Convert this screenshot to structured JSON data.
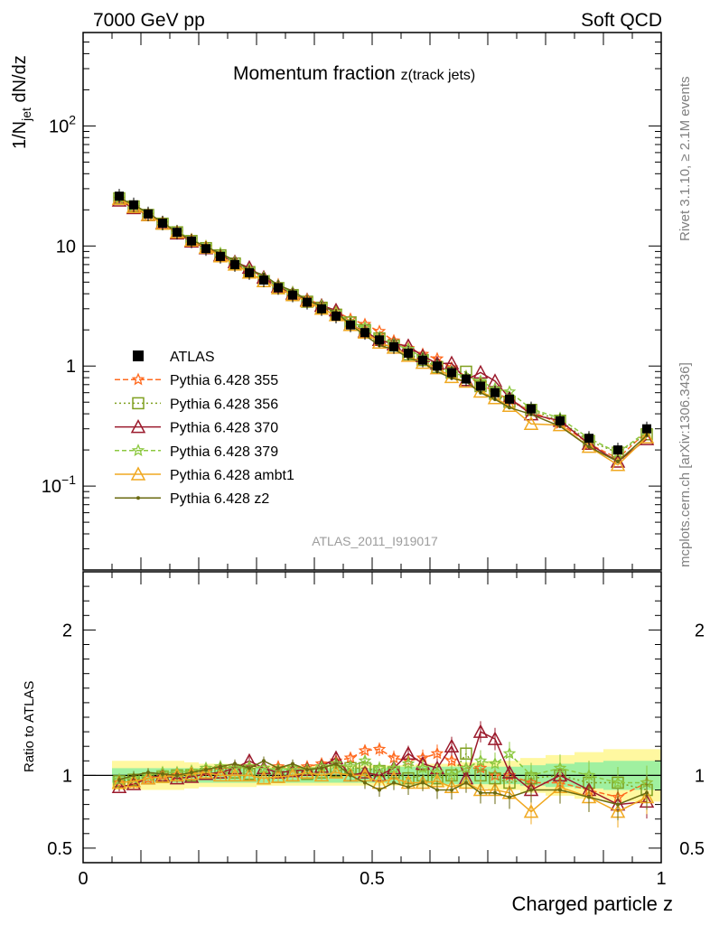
{
  "header": {
    "left": "7000 GeV pp",
    "right": "Soft QCD"
  },
  "side_labels": {
    "rivet": "Rivet 3.1.10, ≥ 2.1M events",
    "mcplots": "mcplots.cern.ch [arXiv:1306.3436]"
  },
  "chart_data": [
    {
      "type": "scatter",
      "title": "Momentum fraction",
      "title_sub": "z(track jets)",
      "ylabel_main": "1/N",
      "ylabel_sub": "jet",
      "ylabel_tail": " dN/dz",
      "xlabel": "Charged particle z",
      "xlim": [
        0,
        1
      ],
      "ylim": [
        0.02,
        600
      ],
      "yscale": "log",
      "ytick_labels": [
        {
          "v": 0.1,
          "base": "10",
          "exp": "−1"
        },
        {
          "v": 1,
          "text": "1"
        },
        {
          "v": 10,
          "text": "10"
        },
        {
          "v": 100,
          "base": "10",
          "exp": "2"
        }
      ],
      "xtick_labels": [
        {
          "v": 0,
          "text": "0"
        },
        {
          "v": 0.5,
          "text": "0.5"
        },
        {
          "v": 1,
          "text": "1"
        }
      ],
      "watermark": "ATLAS_2011_I919017",
      "x": [
        0.0625,
        0.0875,
        0.1125,
        0.1375,
        0.1625,
        0.1875,
        0.2125,
        0.2375,
        0.2625,
        0.2875,
        0.3125,
        0.3375,
        0.3625,
        0.3875,
        0.4125,
        0.4375,
        0.4625,
        0.4875,
        0.5125,
        0.5375,
        0.5625,
        0.5875,
        0.6125,
        0.6375,
        0.6625,
        0.6875,
        0.7125,
        0.7375,
        0.775,
        0.825,
        0.875,
        0.925,
        0.975
      ],
      "atlas": [
        26,
        22,
        18.5,
        15.5,
        13,
        11,
        9.5,
        8.2,
        7.0,
        6.0,
        5.2,
        4.5,
        3.9,
        3.4,
        3.0,
        2.6,
        2.2,
        1.9,
        1.65,
        1.45,
        1.28,
        1.12,
        1.0,
        0.88,
        0.78,
        0.68,
        0.6,
        0.53,
        0.44,
        0.35,
        0.25,
        0.2,
        0.3
      ],
      "series": [
        {
          "name": "Pythia 6.428 355",
          "color": "#ff6a1f",
          "dash": "6,3",
          "marker": "star",
          "ratio": [
            0.95,
            0.95,
            0.98,
            1.0,
            1.0,
            1.02,
            1.03,
            1.05,
            1.05,
            1.06,
            1.05,
            1.06,
            1.05,
            1.06,
            1.08,
            1.1,
            1.12,
            1.17,
            1.18,
            1.12,
            1.1,
            1.12,
            1.15,
            1.1,
            1.05,
            1.05,
            1.0,
            1.0,
            0.95,
            0.95,
            0.9,
            0.85,
            0.95
          ]
        },
        {
          "name": "Pythia 6.428 356",
          "color": "#80a020",
          "dash": "2,3",
          "marker": "square",
          "ratio": [
            0.96,
            0.97,
            0.98,
            0.99,
            1.0,
            1.0,
            1.01,
            1.02,
            1.02,
            1.01,
            0.98,
            0.99,
            1.0,
            1.01,
            1.02,
            1.03,
            1.05,
            1.05,
            1.03,
            1.02,
            0.98,
            1.0,
            0.98,
            1.0,
            1.15,
            1.0,
            0.98,
            0.95,
            0.98,
            1.0,
            0.95,
            0.95,
            0.9
          ]
        },
        {
          "name": "Pythia 6.428 370",
          "color": "#9b1a2c",
          "dash": "",
          "marker": "triangle",
          "ratio": [
            0.92,
            0.94,
            0.98,
            1.0,
            0.98,
            0.99,
            1.01,
            1.02,
            1.05,
            1.1,
            1.05,
            1.02,
            1.03,
            1.04,
            1.06,
            1.12,
            1.0,
            1.02,
            1.0,
            1.05,
            1.15,
            1.08,
            1.05,
            1.2,
            0.98,
            1.3,
            1.25,
            1.02,
            0.9,
            1.0,
            0.9,
            0.8,
            0.82
          ]
        },
        {
          "name": "Pythia 6.428 379",
          "color": "#8cc840",
          "dash": "5,3",
          "marker": "star",
          "ratio": [
            0.97,
            0.98,
            1.0,
            1.02,
            1.02,
            1.03,
            1.05,
            1.06,
            1.05,
            1.06,
            1.05,
            1.04,
            1.05,
            1.04,
            1.06,
            1.08,
            1.06,
            1.1,
            1.05,
            1.05,
            1.08,
            1.05,
            1.02,
            1.0,
            1.05,
            1.1,
            1.08,
            1.15,
            1.0,
            1.05,
            1.0,
            0.95,
            0.95
          ]
        },
        {
          "name": "Pythia 6.428 ambt1",
          "color": "#f0a820",
          "dash": "",
          "marker": "triangle",
          "ratio": [
            0.95,
            0.96,
            0.98,
            0.99,
            1.0,
            1.01,
            1.02,
            1.0,
            1.0,
            1.0,
            0.98,
            0.99,
            1.0,
            1.02,
            1.0,
            1.02,
            1.0,
            1.0,
            0.95,
            0.98,
            0.95,
            0.95,
            0.96,
            0.92,
            0.95,
            0.9,
            0.9,
            0.88,
            0.75,
            0.92,
            0.85,
            0.75,
            0.85
          ]
        },
        {
          "name": "Pythia 6.428 z2",
          "color": "#6a6a10",
          "dash": "",
          "marker": "dot",
          "ratio": [
            0.97,
            1.0,
            1.02,
            1.01,
            1.0,
            1.02,
            1.04,
            1.06,
            1.08,
            1.05,
            1.1,
            1.05,
            1.08,
            1.04,
            1.05,
            1.08,
            1.0,
            0.95,
            0.9,
            0.95,
            0.92,
            0.95,
            0.9,
            0.9,
            0.95,
            0.88,
            0.88,
            0.85,
            0.9,
            0.9,
            0.85,
            0.8,
            0.88
          ]
        }
      ]
    },
    {
      "type": "line",
      "ylabel": "Ratio to ATLAS",
      "ylim": [
        0.4,
        2.4
      ],
      "ytick_labels": [
        {
          "v": 0.5,
          "text": "0.5"
        },
        {
          "v": 1,
          "text": "1"
        },
        {
          "v": 2,
          "text": "2"
        }
      ],
      "band_color": "#a0f0a0",
      "band_outer_color": "#fff8a0",
      "band_inner": [
        0.05,
        0.05,
        0.05,
        0.05,
        0.05,
        0.05,
        0.05,
        0.05,
        0.05,
        0.05,
        0.05,
        0.05,
        0.05,
        0.05,
        0.05,
        0.05,
        0.05,
        0.05,
        0.05,
        0.06,
        0.06,
        0.06,
        0.06,
        0.06,
        0.06,
        0.06,
        0.06,
        0.06,
        0.07,
        0.08,
        0.09,
        0.1,
        0.1
      ],
      "band_outer": [
        0.1,
        0.1,
        0.1,
        0.1,
        0.1,
        0.09,
        0.08,
        0.08,
        0.08,
        0.08,
        0.07,
        0.07,
        0.07,
        0.07,
        0.07,
        0.07,
        0.07,
        0.07,
        0.07,
        0.07,
        0.07,
        0.08,
        0.08,
        0.08,
        0.09,
        0.09,
        0.1,
        0.1,
        0.12,
        0.14,
        0.16,
        0.18,
        0.18
      ]
    }
  ]
}
